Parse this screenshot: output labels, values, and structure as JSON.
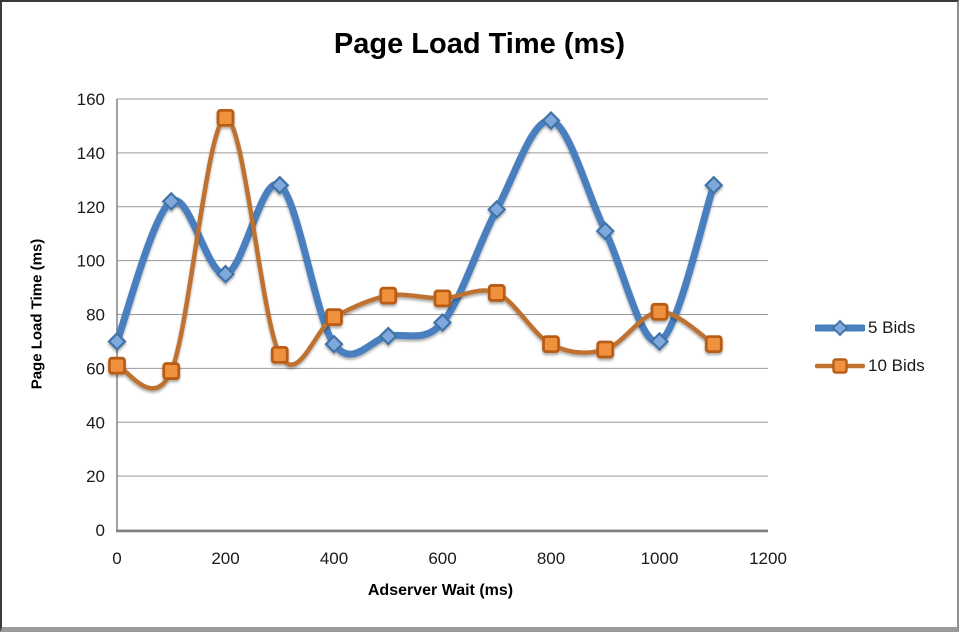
{
  "chart": {
    "title": "Page Load Time (ms)",
    "xlabel": "Adserver Wait (ms)",
    "ylabel": "Page Load Time (ms)"
  },
  "chart_data": {
    "type": "line",
    "title": "Page Load Time (ms)",
    "xlabel": "Adserver Wait (ms)",
    "ylabel": "Page Load Time (ms)",
    "smooth": true,
    "grid": true,
    "grid_color": "#9a9a9a",
    "axis_color": "#808080",
    "tick_color": "#1a1a1a",
    "xlim": [
      0,
      1200
    ],
    "ylim": [
      0,
      160
    ],
    "x_ticks": [
      0,
      200,
      400,
      600,
      800,
      1000,
      1200
    ],
    "y_ticks": [
      0,
      20,
      40,
      60,
      80,
      100,
      120,
      140,
      160
    ],
    "x": [
      0,
      100,
      200,
      300,
      400,
      500,
      600,
      700,
      800,
      900,
      1000,
      1100
    ],
    "series": [
      {
        "name": "5 Bids",
        "marker": "diamond",
        "line_color": "#4A7FBE",
        "line_width": 7,
        "marker_fill": "#7FA8DC",
        "marker_stroke": "#4173A7",
        "values": [
          70,
          122,
          95,
          128,
          69,
          72,
          77,
          119,
          152,
          111,
          70,
          128
        ]
      },
      {
        "name": "10 Bids",
        "marker": "square",
        "line_color": "#BE7230",
        "line_width": 4.5,
        "marker_fill": "#F0923E",
        "marker_stroke": "#B95D18",
        "values": [
          61,
          59,
          153,
          65,
          79,
          87,
          86,
          88,
          69,
          67,
          81,
          69
        ]
      }
    ],
    "legend_position": "right"
  }
}
